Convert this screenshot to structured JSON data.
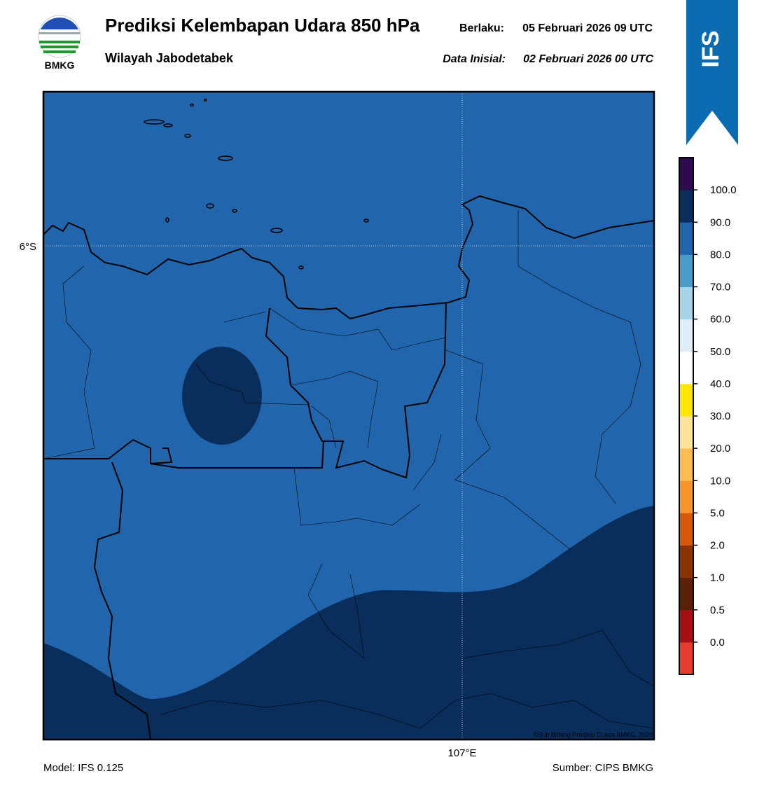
{
  "header": {
    "title": "Prediksi Kelembapan Udara 850 hPa",
    "subtitle": "Wilayah Jabodetabek",
    "valid_label": "Berlaku:",
    "valid": "05 Februari 2026 09 UTC",
    "init_label": "Data Inisial:",
    "init": "02 Februari 2026 00 UTC",
    "logo_text": "BMKG",
    "badge": "IFS"
  },
  "map": {
    "lat_label": "6°S",
    "lon_label": "107°E",
    "credit": "©Sub Bidang Prediksi Cuaca BMKG, 2020"
  },
  "colorbar": {
    "ticks": [
      {
        "value": 0,
        "label": "0.0"
      },
      {
        "value": 0.5,
        "label": "0.5"
      },
      {
        "value": 1,
        "label": "1.0"
      },
      {
        "value": 2,
        "label": "2.0"
      },
      {
        "value": 5,
        "label": "5.0"
      },
      {
        "value": 10,
        "label": "10.0"
      },
      {
        "value": 20,
        "label": "20.0"
      },
      {
        "value": 30,
        "label": "30.0"
      },
      {
        "value": 40,
        "label": "40.0"
      },
      {
        "value": 50,
        "label": "50.0"
      },
      {
        "value": 60,
        "label": "60.0"
      },
      {
        "value": 70,
        "label": "70.0"
      },
      {
        "value": 80,
        "label": "80.0"
      },
      {
        "value": 90,
        "label": "90.0"
      },
      {
        "value": 100,
        "label": "100.0"
      }
    ],
    "colors": [
      "#e53b2e",
      "#a80f14",
      "#5b2008",
      "#8a3200",
      "#d45a0a",
      "#f7942a",
      "#fdbd4f",
      "#fde39a",
      "#ffe600",
      "#ffffff",
      "#e0ecf6",
      "#a9d3e8",
      "#4a9cc9",
      "#2166ac",
      "#0a2e5c",
      "#2e0a4f"
    ]
  },
  "footer": {
    "model": "Model: IFS 0.125",
    "source": "Sumber: CIPS BMKG"
  }
}
